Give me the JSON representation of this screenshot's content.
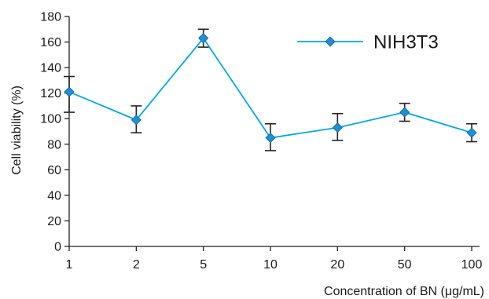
{
  "chart_data": {
    "type": "line",
    "title": "",
    "xlabel": "Concentration of BN (μg/mL)",
    "ylabel": "Cell viability (%)",
    "categories": [
      "1",
      "2",
      "5",
      "10",
      "20",
      "50",
      "100"
    ],
    "ylim": [
      0,
      180
    ],
    "yticks": [
      0,
      20,
      40,
      60,
      80,
      100,
      120,
      140,
      160,
      180
    ],
    "grid": false,
    "legend_position": "top-right",
    "series": [
      {
        "name": "NIH3T3",
        "values": [
          121,
          99,
          163,
          85,
          93,
          105,
          89
        ],
        "error_low": [
          105,
          89,
          156,
          75,
          83,
          98,
          82
        ],
        "error_high": [
          133,
          110,
          170,
          96,
          104,
          112,
          96
        ],
        "line_color": "#00a8e8",
        "marker_color": "#1f8fd6",
        "marker": "diamond"
      }
    ]
  }
}
